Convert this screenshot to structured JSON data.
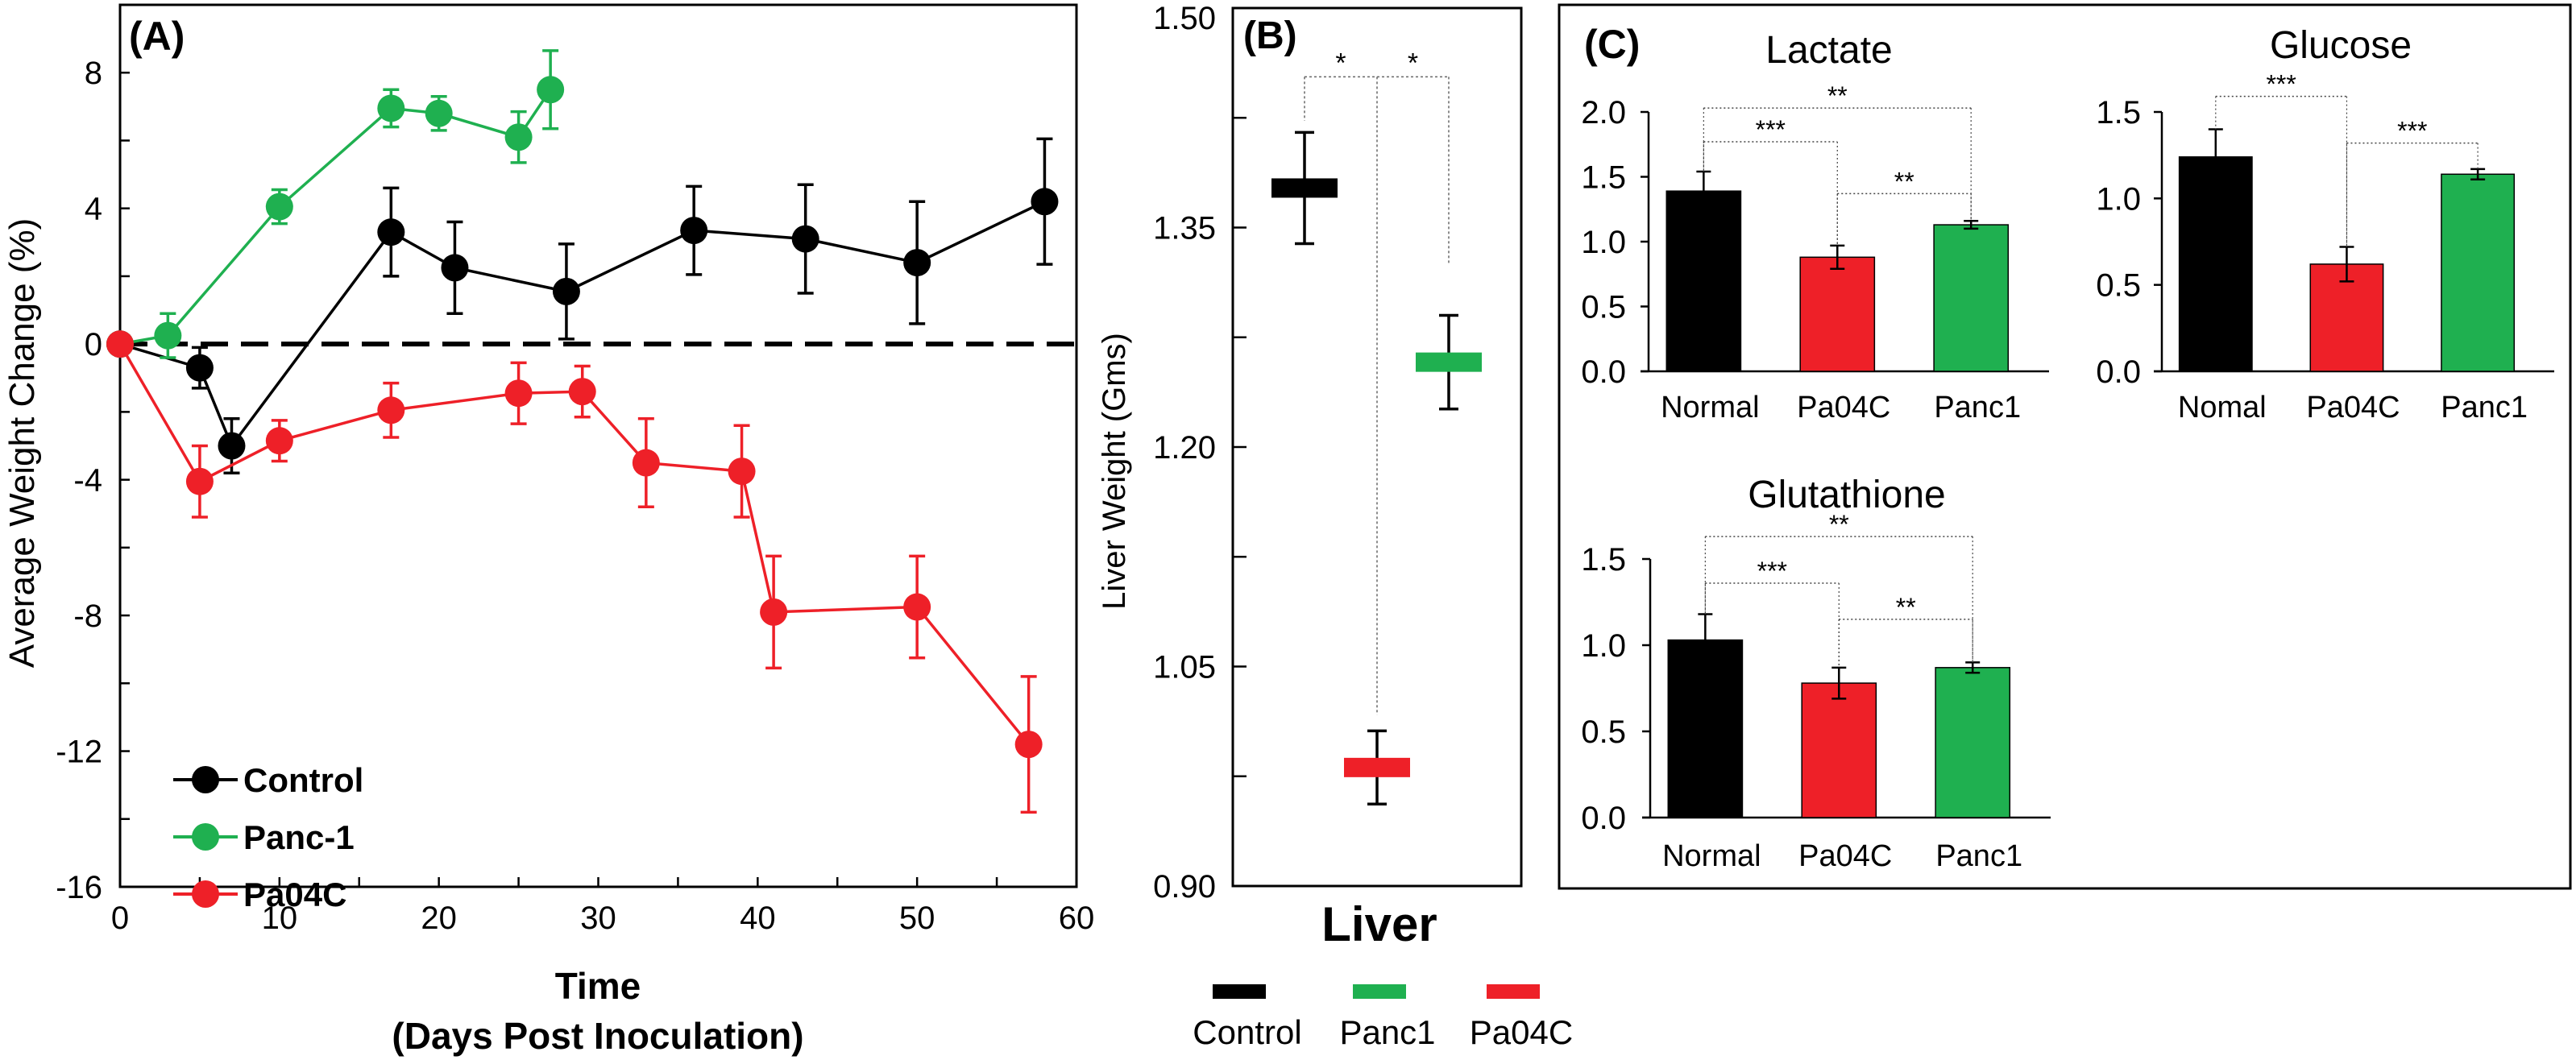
{
  "colors": {
    "control": "#000000",
    "panc1": "#1fb050",
    "pa04c": "#ee2028"
  },
  "chart_data": [
    {
      "type": "line",
      "panel_label": "(A)",
      "xlabel": "Time",
      "xlabel_sub": "(Days Post Inoculation)",
      "ylabel": "Average Weight Change (%)",
      "xlim": [
        0,
        60
      ],
      "ylim": [
        -16,
        10
      ],
      "xticks": [
        0,
        10,
        20,
        30,
        40,
        50,
        60
      ],
      "yticks": [
        -16,
        -12,
        -8,
        -4,
        0,
        4,
        8
      ],
      "reference_line": {
        "y": 0,
        "style": "dashed"
      },
      "legend_position": "bottom-left",
      "series": [
        {
          "name": "Control",
          "color": "#000000",
          "x": [
            0,
            5,
            7,
            17,
            21,
            28,
            36,
            43,
            50,
            58
          ],
          "y": [
            0,
            -0.7,
            -3.0,
            3.3,
            2.25,
            1.55,
            3.35,
            3.1,
            2.4,
            4.2
          ],
          "err": [
            0,
            0.6,
            0.8,
            1.3,
            1.35,
            1.4,
            1.3,
            1.6,
            1.8,
            1.85
          ]
        },
        {
          "name": "Panc-1",
          "color": "#1fb050",
          "x": [
            0,
            3,
            10,
            17,
            20,
            25,
            27
          ],
          "y": [
            0,
            0.25,
            4.05,
            6.95,
            6.8,
            6.1,
            7.5
          ],
          "err": [
            0,
            0.65,
            0.5,
            0.55,
            0.5,
            0.75,
            1.15
          ]
        },
        {
          "name": "Pa04C",
          "color": "#ee2028",
          "x": [
            0,
            5,
            10,
            17,
            25,
            29,
            33,
            39,
            41,
            50,
            57
          ],
          "y": [
            0,
            -4.05,
            -2.85,
            -1.95,
            -1.45,
            -1.4,
            -3.5,
            -3.75,
            -7.9,
            -7.75,
            -11.8
          ],
          "err": [
            0,
            1.05,
            0.6,
            0.8,
            0.9,
            0.75,
            1.3,
            1.35,
            1.65,
            1.5,
            2.0
          ]
        }
      ]
    },
    {
      "type": "scatter",
      "panel_label": "(B)",
      "xlabel": "Liver",
      "ylabel": "Liver Weight (Gms)",
      "ylim": [
        0.9,
        1.5
      ],
      "yticks": [
        "0.90",
        "1.05",
        "1.20",
        "1.35",
        "1.50"
      ],
      "legend_position": "bottom",
      "groups": [
        {
          "name": "Control",
          "color": "#000000",
          "value": 1.377,
          "err": 0.038
        },
        {
          "name": "Pa04C",
          "color": "#ee2028",
          "value": 0.981,
          "err": 0.025
        },
        {
          "name": "Panc1",
          "color": "#1fb050",
          "value": 1.258,
          "err": 0.032
        }
      ],
      "legend": [
        "Control",
        "Panc1",
        "Pa04C"
      ],
      "significance": [
        {
          "from": "Control",
          "to": "Pa04C",
          "label": "*"
        },
        {
          "from": "Pa04C",
          "to": "Panc1",
          "label": "*"
        }
      ]
    },
    {
      "type": "bar",
      "panel_label": "(C)",
      "title": "Lactate",
      "categories": [
        "Normal",
        "Pa04C",
        "Panc1"
      ],
      "values": [
        1.39,
        0.88,
        1.13
      ],
      "err": [
        0.15,
        0.09,
        0.03
      ],
      "ylim": [
        0,
        2.0
      ],
      "yticks": [
        "0.0",
        "0.5",
        "1.0",
        "1.5",
        "2.0"
      ],
      "significance": [
        {
          "from": 0,
          "to": 2,
          "label": "**",
          "level": 2.03
        },
        {
          "from": 0,
          "to": 1,
          "label": "***",
          "level": 1.77
        },
        {
          "from": 1,
          "to": 2,
          "label": "**",
          "level": 1.37
        }
      ]
    },
    {
      "type": "bar",
      "title": "Glucose",
      "categories": [
        "Nomal",
        "Pa04C",
        "Panc1"
      ],
      "values": [
        1.24,
        0.62,
        1.14
      ],
      "err": [
        0.16,
        0.1,
        0.03
      ],
      "ylim": [
        0,
        1.5
      ],
      "yticks": [
        "0.0",
        "0.5",
        "1.0",
        "1.5"
      ],
      "significance": [
        {
          "from": 0,
          "to": 1,
          "label": "***",
          "level": 1.59
        },
        {
          "from": 1,
          "to": 2,
          "label": "***",
          "level": 1.32
        }
      ]
    },
    {
      "type": "bar",
      "title": "Glutathione",
      "categories": [
        "Normal",
        "Pa04C",
        "Panc1"
      ],
      "values": [
        1.03,
        0.78,
        0.87
      ],
      "err": [
        0.15,
        0.09,
        0.03
      ],
      "ylim": [
        0,
        1.5
      ],
      "yticks": [
        "0.0",
        "0.5",
        "1.0",
        "1.5"
      ],
      "significance": [
        {
          "from": 0,
          "to": 2,
          "label": "**",
          "level": 1.63
        },
        {
          "from": 0,
          "to": 1,
          "label": "***",
          "level": 1.36
        },
        {
          "from": 1,
          "to": 2,
          "label": "**",
          "level": 1.15
        }
      ]
    }
  ]
}
